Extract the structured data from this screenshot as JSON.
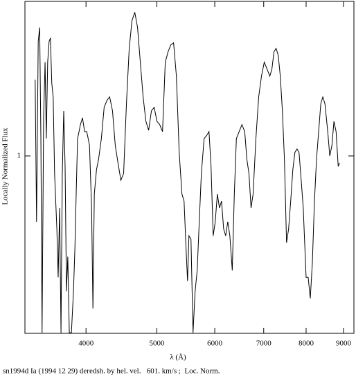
{
  "chart_data": {
    "type": "line",
    "xlabel": "λ (Å)",
    "ylabel": "Locally Normalized Flux",
    "caption": "sn1994d Ia (1994 12 29) deredsh. by hel. vel.   601. km/s ;  Loc. Norm.",
    "xscale": "log",
    "yscale": "log",
    "xlim": [
      3300,
      9300
    ],
    "xticks": [
      4000,
      5000,
      6000,
      7000,
      8000,
      9000
    ],
    "ylim": [
      0.375,
      2.35
    ],
    "yticks": [
      1
    ],
    "color": "#000000",
    "x": [
      3408,
      3423,
      3441,
      3457,
      3470,
      3483,
      3500,
      3516,
      3530,
      3545,
      3561,
      3576,
      3591,
      3607,
      3623,
      3649,
      3664,
      3681,
      3697,
      3712,
      3729,
      3745,
      3761,
      3777,
      3795,
      3820,
      3845,
      3862,
      3878,
      3895,
      3913,
      3930,
      3956,
      3982,
      4009,
      4027,
      4044,
      4071,
      4088,
      4106,
      4134,
      4161,
      4198,
      4235,
      4272,
      4309,
      4348,
      4386,
      4424,
      4464,
      4503,
      4543,
      4583,
      4623,
      4664,
      4705,
      4746,
      4788,
      4830,
      4872,
      4915,
      4958,
      5001,
      5045,
      5090,
      5134,
      5179,
      5225,
      5270,
      5317,
      5364,
      5411,
      5447,
      5482,
      5507,
      5531,
      5567,
      5603,
      5640,
      5677,
      5714,
      5752,
      5802,
      5853,
      5892,
      5930,
      5970,
      6009,
      6049,
      6089,
      6129,
      6170,
      6210,
      6251,
      6292,
      6340,
      6381,
      6423,
      6479,
      6536,
      6594,
      6638,
      6682,
      6726,
      6770,
      6830,
      6890,
      6951,
      7012,
      7074,
      7136,
      7183,
      7230,
      7278,
      7327,
      7375,
      7424,
      7472,
      7522,
      7571,
      7621,
      7672,
      7722,
      7774,
      7824,
      7877,
      7928,
      8000,
      8052,
      8106,
      8158,
      8213,
      8266,
      8322,
      8378,
      8432,
      8489,
      8564,
      8619,
      8677,
      8733,
      8792,
      8851,
      8890
    ],
    "values": [
      1.525,
      0.695,
      1.884,
      2.034,
      1.101,
      0.376,
      1.235,
      1.679,
      1.101,
      1.679,
      1.884,
      1.92,
      1.496,
      1.386,
      0.908,
      0.668,
      0.511,
      0.75,
      0.376,
      0.908,
      1.283,
      0.944,
      0.473,
      0.573,
      0.376,
      0.376,
      0.473,
      0.596,
      0.81,
      1.101,
      1.144,
      1.189,
      1.235,
      1.144,
      1.144,
      1.101,
      1.059,
      0.75,
      0.43,
      0.81,
      0.926,
      0.981,
      1.101,
      1.308,
      1.359,
      1.386,
      1.283,
      1.059,
      0.962,
      0.874,
      0.908,
      1.334,
      1.812,
      2.113,
      2.213,
      2.034,
      1.679,
      1.386,
      1.211,
      1.152,
      1.283,
      1.308,
      1.211,
      1.189,
      1.144,
      1.679,
      1.778,
      1.848,
      1.869,
      1.555,
      1.019,
      0.81,
      0.779,
      0.596,
      0.501,
      0.643,
      0.631,
      0.376,
      0.473,
      0.531,
      0.695,
      0.908,
      1.101,
      1.122,
      1.144,
      0.944,
      0.643,
      0.695,
      0.81,
      0.75,
      0.779,
      0.668,
      0.643,
      0.695,
      0.643,
      0.531,
      0.81,
      1.101,
      1.144,
      1.189,
      1.144,
      0.981,
      0.908,
      0.75,
      0.81,
      1.101,
      1.386,
      1.555,
      1.679,
      1.616,
      1.555,
      1.616,
      1.778,
      1.812,
      1.746,
      1.555,
      1.283,
      0.981,
      0.619,
      0.668,
      0.779,
      0.926,
      1.019,
      1.039,
      1.019,
      0.874,
      0.75,
      0.511,
      0.511,
      0.455,
      0.552,
      0.779,
      0.981,
      1.144,
      1.334,
      1.386,
      1.334,
      1.144,
      1,
      1.059,
      1.211,
      1.144,
      0.944,
      0.962
    ]
  }
}
